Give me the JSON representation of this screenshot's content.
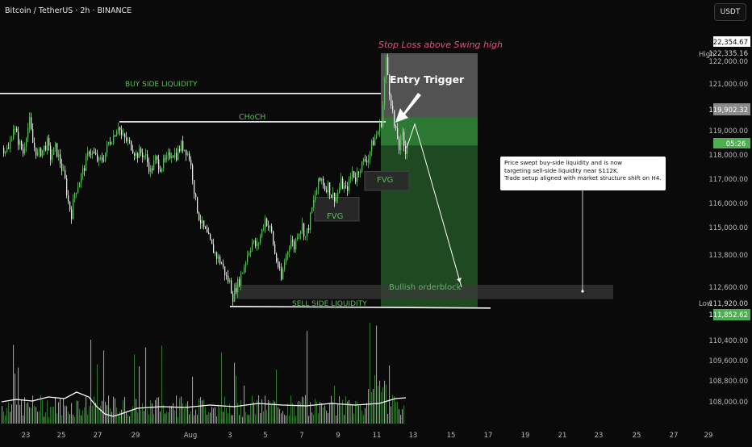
{
  "header": {
    "title": "Bitcoin / TetherUS · 2h · BINANCE",
    "currency_button": "USDT"
  },
  "colors": {
    "background": "#0a0a0a",
    "up_candle": "#5fb85f",
    "down_candle": "#e8e8e8",
    "long_zone": "#2f7d34",
    "stop_zone": "#6b6b6b",
    "stop_label": "#e94e8b",
    "price_badge_green": "#4caf50",
    "ma_line": "#ffffff"
  },
  "annotations": {
    "stop_loss": "Stop Loss above Swing high",
    "entry_trigger": "Entry Trigger",
    "buy_side_liquidity": "BUY SIDE LIQUIDITY",
    "choch": "CHoCH",
    "fvg_upper": "FVG",
    "fvg_lower": "FVG",
    "bullish_orderblock": "Bullish orderblock",
    "sell_side_liquidity": "SELL SIDE LIQUIDITY",
    "note_lines": [
      "Price swept buy-side liquidity and is now",
      "targeting sell-side liquidity near $112K.",
      "Trade setup aligned with market structure shift on H4."
    ]
  },
  "price_axis": {
    "high_label": "High",
    "low_label": "Low",
    "ticks": [
      "122,000.00",
      "121,000.00",
      "119,000.00",
      "118,000.00",
      "117,000.00",
      "116,000.00",
      "115,000.00",
      "113,800.00",
      "112,600.00",
      "110,400.00",
      "109,600.00",
      "108,800.00",
      "108,000.00"
    ],
    "high_value": "122,335.16",
    "low_value": "111,920.00",
    "badges": {
      "top": "122,354.67",
      "stop": "119,902.32",
      "current_time": "05:26",
      "target": "111,852.62"
    }
  },
  "time_axis": {
    "ticks": [
      "23",
      "25",
      "27",
      "29",
      "Aug",
      "3",
      "5",
      "7",
      "9",
      "11",
      "13",
      "15",
      "17",
      "19",
      "21",
      "23",
      "25",
      "27",
      "29",
      "25"
    ]
  },
  "chart_data": {
    "type": "candlestick",
    "timeframe": "2h",
    "symbol": "Bitcoin / TetherUS",
    "exchange": "BINANCE",
    "ylim": [
      111400,
      122600
    ],
    "close_path": [
      [
        0,
        118600
      ],
      [
        8,
        118500
      ],
      [
        14,
        119500
      ],
      [
        20,
        118900
      ],
      [
        26,
        118400
      ],
      [
        30,
        119200
      ],
      [
        34,
        119700
      ],
      [
        38,
        118800
      ],
      [
        44,
        118300
      ],
      [
        50,
        118500
      ],
      [
        56,
        118800
      ],
      [
        60,
        118200
      ],
      [
        66,
        118600
      ],
      [
        72,
        118000
      ],
      [
        78,
        117200
      ],
      [
        82,
        116300
      ],
      [
        86,
        115800
      ],
      [
        90,
        116700
      ],
      [
        96,
        117200
      ],
      [
        102,
        117800
      ],
      [
        108,
        118500
      ],
      [
        114,
        118300
      ],
      [
        120,
        118000
      ],
      [
        126,
        118200
      ],
      [
        132,
        118800
      ],
      [
        138,
        119100
      ],
      [
        144,
        119600
      ],
      [
        148,
        119100
      ],
      [
        154,
        118900
      ],
      [
        160,
        118700
      ],
      [
        166,
        118300
      ],
      [
        172,
        118400
      ],
      [
        178,
        118200
      ],
      [
        184,
        117600
      ],
      [
        190,
        118100
      ],
      [
        196,
        117800
      ],
      [
        202,
        118000
      ],
      [
        210,
        118400
      ],
      [
        216,
        118300
      ],
      [
        222,
        118700
      ],
      [
        228,
        118500
      ],
      [
        232,
        118200
      ],
      [
        236,
        117400
      ],
      [
        240,
        116300
      ],
      [
        244,
        115700
      ],
      [
        248,
        115300
      ],
      [
        254,
        114900
      ],
      [
        260,
        114400
      ],
      [
        266,
        114000
      ],
      [
        272,
        113700
      ],
      [
        278,
        113100
      ],
      [
        282,
        112900
      ],
      [
        286,
        112300
      ],
      [
        290,
        112700
      ],
      [
        294,
        113000
      ],
      [
        300,
        113600
      ],
      [
        304,
        114100
      ],
      [
        310,
        114600
      ],
      [
        316,
        114400
      ],
      [
        322,
        115100
      ],
      [
        326,
        115600
      ],
      [
        330,
        115300
      ],
      [
        334,
        115000
      ],
      [
        338,
        114100
      ],
      [
        342,
        113600
      ],
      [
        346,
        113000
      ],
      [
        350,
        113800
      ],
      [
        354,
        114300
      ],
      [
        358,
        114700
      ],
      [
        362,
        114400
      ],
      [
        366,
        115000
      ],
      [
        372,
        115300
      ],
      [
        376,
        114800
      ],
      [
        380,
        115300
      ],
      [
        384,
        116000
      ],
      [
        388,
        116600
      ],
      [
        392,
        117100
      ],
      [
        396,
        117300
      ],
      [
        400,
        116900
      ],
      [
        404,
        117000
      ],
      [
        408,
        116600
      ],
      [
        414,
        116500
      ],
      [
        420,
        117100
      ],
      [
        426,
        116800
      ],
      [
        430,
        117100
      ],
      [
        434,
        117600
      ],
      [
        438,
        117300
      ],
      [
        442,
        117700
      ],
      [
        446,
        117900
      ],
      [
        450,
        118100
      ],
      [
        454,
        118200
      ],
      [
        458,
        118700
      ],
      [
        462,
        119000
      ],
      [
        466,
        119300
      ],
      [
        470,
        119700
      ],
      [
        472,
        120400
      ],
      [
        474,
        121500
      ],
      [
        476,
        122300
      ],
      [
        478,
        121700
      ],
      [
        480,
        121000
      ],
      [
        482,
        120600
      ],
      [
        484,
        120100
      ],
      [
        486,
        119500
      ],
      [
        488,
        119200
      ],
      [
        490,
        119000
      ],
      [
        492,
        118600
      ],
      [
        494,
        118900
      ],
      [
        496,
        119100
      ],
      [
        498,
        118700
      ],
      [
        500,
        118500
      ],
      [
        502,
        118900
      ]
    ],
    "moving_average_on_volume": [
      [
        2,
        498
      ],
      [
        20,
        495
      ],
      [
        40,
        497
      ],
      [
        60,
        492
      ],
      [
        80,
        494
      ],
      [
        95,
        486
      ],
      [
        110,
        492
      ],
      [
        120,
        504
      ],
      [
        130,
        513
      ],
      [
        140,
        516
      ],
      [
        150,
        513
      ],
      [
        170,
        506
      ],
      [
        200,
        504
      ],
      [
        230,
        505
      ],
      [
        260,
        502
      ],
      [
        290,
        504
      ],
      [
        320,
        500
      ],
      [
        350,
        502
      ],
      [
        380,
        503
      ],
      [
        410,
        500
      ],
      [
        440,
        502
      ],
      [
        470,
        500
      ],
      [
        490,
        494
      ],
      [
        503,
        493
      ]
    ],
    "zones": {
      "stop_zone": {
        "top": 122600,
        "bottom": 119900
      },
      "long_zone": {
        "top": 119900,
        "bottom": 111850
      },
      "entry_band": {
        "top": 119900,
        "bottom": 118700
      },
      "fvg_upper": {
        "top": 117600,
        "bottom": 117000
      },
      "fvg_lower": {
        "top": 116500,
        "bottom": 115500
      },
      "bullish_orderblock": {
        "top": 112700,
        "bottom": 112400
      }
    },
    "levels": {
      "buy_side_liquidity": 120900,
      "choch": 119700,
      "sell_side_liquidity": 111920
    },
    "projection": [
      [
        502,
        118600
      ],
      [
        512,
        119600
      ],
      [
        520,
        118700
      ],
      [
        570,
        112700
      ]
    ]
  }
}
